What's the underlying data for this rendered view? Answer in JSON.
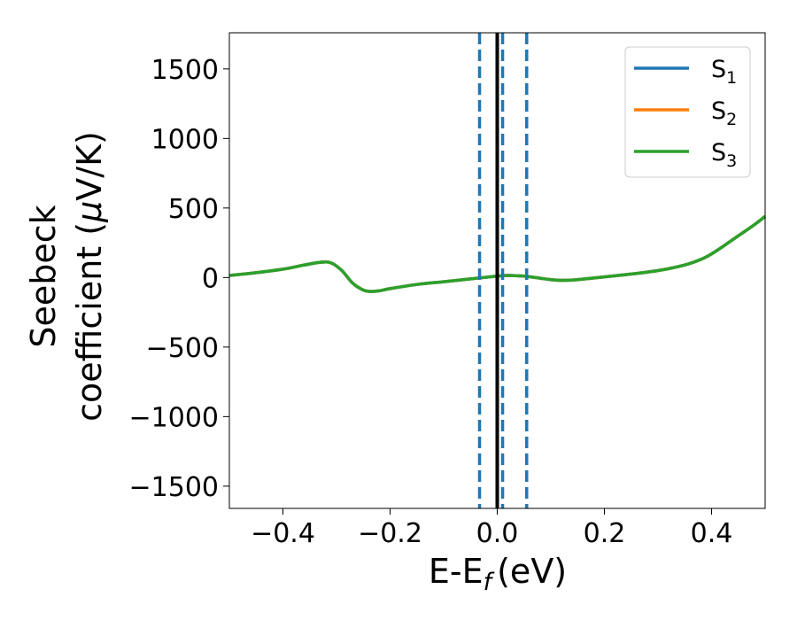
{
  "chart_data": {
    "type": "line",
    "xlabel": "E-E",
    "xlabel_sub": "f",
    "xlabel_units": "(eV)",
    "ylabel_line1": "Seebeck",
    "ylabel_line2": "coefficient  (",
    "ylabel_mu": "μ",
    "ylabel_units": "V/K)",
    "xlim": [
      -0.5,
      0.5
    ],
    "ylim": [
      -1660,
      1760
    ],
    "xticks": [
      -0.4,
      -0.2,
      0.0,
      0.2,
      0.4
    ],
    "xtick_labels": [
      "−0.4",
      "−0.2",
      "0.0",
      "0.2",
      "0.4"
    ],
    "yticks": [
      -1500,
      -1000,
      -500,
      0,
      500,
      1000,
      1500
    ],
    "ytick_labels": [
      "−1500",
      "−1000",
      "−500",
      "0",
      "500",
      "1000",
      "1500"
    ],
    "grid": false,
    "legend_position": "top-right",
    "series": [
      {
        "name": "S",
        "subscript": "1",
        "color": "#1f77b4",
        "x": [
          -0.5,
          -0.45,
          -0.4,
          -0.36,
          -0.33,
          -0.31,
          -0.29,
          -0.27,
          -0.25,
          -0.235,
          -0.22,
          -0.2,
          -0.15,
          -0.1,
          -0.05,
          0.0,
          0.02,
          0.05,
          0.08,
          0.1,
          0.12,
          0.15,
          0.2,
          0.25,
          0.3,
          0.35,
          0.38,
          0.4,
          0.42,
          0.45,
          0.48,
          0.5
        ],
        "y": [
          15,
          35,
          60,
          90,
          110,
          105,
          50,
          -40,
          -90,
          -100,
          -95,
          -80,
          -50,
          -30,
          -10,
          10,
          15,
          10,
          -5,
          -15,
          -20,
          -15,
          5,
          25,
          50,
          90,
          130,
          170,
          220,
          300,
          380,
          440
        ]
      },
      {
        "name": "S",
        "subscript": "2",
        "color": "#ff7f0e",
        "x": [
          -0.5,
          -0.45,
          -0.4,
          -0.36,
          -0.33,
          -0.31,
          -0.29,
          -0.27,
          -0.25,
          -0.235,
          -0.22,
          -0.2,
          -0.15,
          -0.1,
          -0.05,
          0.0,
          0.02,
          0.05,
          0.08,
          0.1,
          0.12,
          0.15,
          0.2,
          0.25,
          0.3,
          0.35,
          0.38,
          0.4,
          0.42,
          0.45,
          0.48,
          0.5
        ],
        "y": [
          15,
          35,
          60,
          90,
          110,
          105,
          50,
          -40,
          -90,
          -100,
          -95,
          -80,
          -50,
          -30,
          -10,
          10,
          15,
          10,
          -5,
          -15,
          -20,
          -15,
          5,
          25,
          50,
          90,
          130,
          170,
          220,
          300,
          380,
          440
        ]
      },
      {
        "name": "S",
        "subscript": "3",
        "color": "#2ca02c",
        "x": [
          -0.5,
          -0.45,
          -0.4,
          -0.36,
          -0.33,
          -0.31,
          -0.29,
          -0.27,
          -0.25,
          -0.235,
          -0.22,
          -0.2,
          -0.15,
          -0.1,
          -0.05,
          0.0,
          0.02,
          0.05,
          0.08,
          0.1,
          0.12,
          0.15,
          0.2,
          0.25,
          0.3,
          0.35,
          0.38,
          0.4,
          0.42,
          0.45,
          0.48,
          0.5
        ],
        "y": [
          15,
          35,
          60,
          90,
          110,
          105,
          50,
          -40,
          -90,
          -100,
          -95,
          -80,
          -50,
          -30,
          -10,
          10,
          15,
          10,
          -5,
          -15,
          -20,
          -15,
          5,
          25,
          50,
          90,
          130,
          170,
          220,
          300,
          380,
          440
        ]
      }
    ],
    "vertical_lines": [
      {
        "x": 0.0,
        "color": "#000000",
        "style": "solid"
      },
      {
        "x": -0.033,
        "color": "#1f77b4",
        "style": "dashed"
      },
      {
        "x": 0.01,
        "color": "#1f77b4",
        "style": "dashed"
      },
      {
        "x": 0.055,
        "color": "#1f77b4",
        "style": "dashed"
      }
    ]
  }
}
